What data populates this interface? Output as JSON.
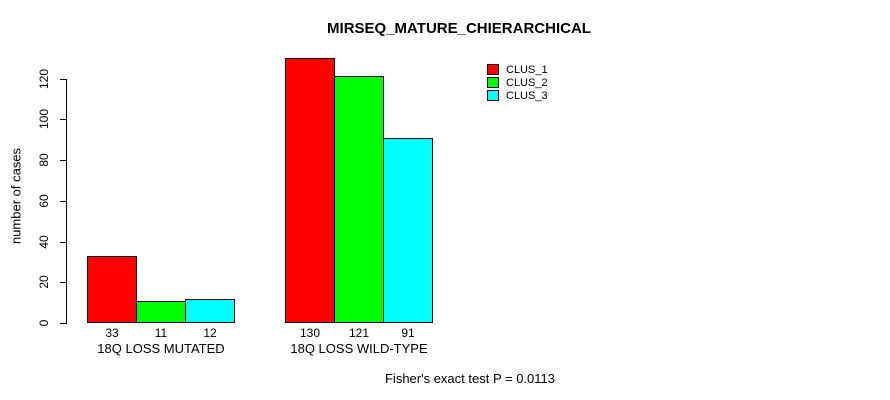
{
  "chart_data": {
    "type": "bar",
    "title": "MIRSEQ_MATURE_CHIERARCHICAL",
    "ylabel": "number of cases",
    "xlabel": "",
    "categories": [
      "18Q LOSS MUTATED",
      "18Q LOSS WILD-TYPE"
    ],
    "series": [
      {
        "name": "CLUS_1",
        "color": "#ff0000",
        "values": [
          33,
          130
        ]
      },
      {
        "name": "CLUS_2",
        "color": "#00ff00",
        "values": [
          11,
          121
        ]
      },
      {
        "name": "CLUS_3",
        "color": "#00ffff",
        "values": [
          12,
          91
        ]
      }
    ],
    "yticks": [
      0,
      20,
      40,
      60,
      80,
      100,
      120
    ],
    "ylim": [
      0,
      130
    ],
    "grid": false,
    "legend_position": "top-right",
    "legend_entries": [
      "CLUS_1",
      "CLUS_2",
      "CLUS_3"
    ],
    "bar_value_labels": [
      [
        33,
        11,
        12
      ],
      [
        130,
        121,
        91
      ]
    ],
    "annotation": "Fisher's exact test P = 0.0113",
    "colors": {
      "bar_border": "#000000",
      "axis": "#000000",
      "background": "#ffffff",
      "text": "#000000"
    }
  }
}
